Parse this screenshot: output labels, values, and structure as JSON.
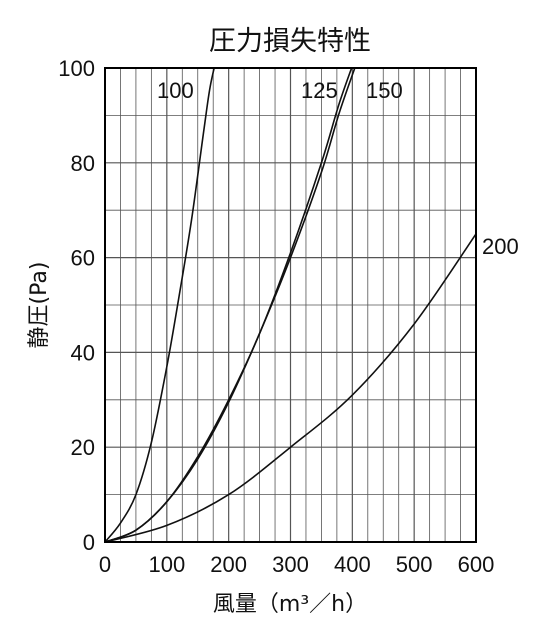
{
  "chart_data": {
    "type": "line",
    "title": "圧力損失特性",
    "xlabel": "風量（m³／h）",
    "ylabel": "静圧(Pa)",
    "xlim": [
      0,
      600
    ],
    "ylim": [
      0,
      100
    ],
    "xticks": [
      0,
      100,
      200,
      300,
      400,
      500,
      600
    ],
    "yticks": [
      0,
      20,
      40,
      60,
      80,
      100
    ],
    "grid": true,
    "series": [
      {
        "name": "100",
        "x": [
          0,
          25,
          50,
          75,
          100,
          120,
          140,
          160,
          170,
          182
        ],
        "y": [
          0,
          4,
          10,
          21,
          37,
          52,
          68,
          87,
          96,
          103
        ]
      },
      {
        "name": "125",
        "x": [
          0,
          50,
          100,
          150,
          200,
          250,
          300,
          350,
          380,
          410
        ],
        "y": [
          0,
          2.5,
          8.5,
          18,
          30,
          44,
          61,
          80,
          93,
          104
        ]
      },
      {
        "name": "150",
        "x": [
          0,
          50,
          100,
          150,
          200,
          250,
          300,
          350,
          380,
          415
        ],
        "y": [
          0,
          2.5,
          8.5,
          17.5,
          29.5,
          44,
          60,
          78,
          91,
          104
        ]
      },
      {
        "name": "200",
        "x": [
          0,
          100,
          200,
          300,
          400,
          500,
          600
        ],
        "y": [
          0,
          3.5,
          10,
          20,
          31,
          46,
          65
        ]
      }
    ],
    "series_labels": [
      "100",
      "125",
      "150",
      "200"
    ]
  }
}
